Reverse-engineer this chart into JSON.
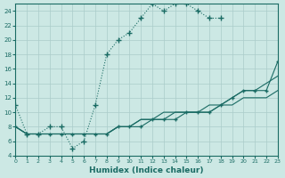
{
  "xlabel": "Humidex (Indice chaleur)",
  "bg_color": "#cce8e4",
  "grid_color": "#aaccca",
  "line_color": "#1a6b64",
  "xlim": [
    0,
    23
  ],
  "ylim": [
    4,
    25
  ],
  "xticks": [
    0,
    1,
    2,
    3,
    4,
    5,
    6,
    7,
    8,
    9,
    10,
    11,
    12,
    13,
    14,
    15,
    16,
    17,
    18,
    19,
    20,
    21,
    22,
    23
  ],
  "yticks": [
    4,
    6,
    8,
    10,
    12,
    14,
    16,
    18,
    20,
    22,
    24
  ],
  "curve_x": [
    0,
    1,
    2,
    3,
    4,
    5,
    6,
    7,
    8,
    9,
    10,
    11,
    12,
    13,
    14,
    15,
    16,
    17,
    18
  ],
  "curve_y": [
    11,
    7,
    7,
    8,
    8,
    5,
    6,
    11,
    18,
    20,
    21,
    23,
    25,
    24,
    25,
    25,
    24,
    23,
    23
  ],
  "line1_x": [
    0,
    1,
    2,
    3,
    4,
    5,
    6,
    7,
    8,
    9,
    10,
    11,
    12,
    13,
    14,
    15,
    16,
    17,
    18,
    19,
    20,
    21,
    22,
    23
  ],
  "line1_y": [
    8,
    7,
    7,
    7,
    7,
    7,
    7,
    7,
    7,
    8,
    8,
    8,
    9,
    9,
    9,
    10,
    10,
    10,
    11,
    12,
    13,
    13,
    13,
    17
  ],
  "line2_x": [
    0,
    1,
    2,
    3,
    4,
    5,
    6,
    7,
    8,
    9,
    10,
    11,
    12,
    13,
    14,
    15,
    16,
    17,
    18,
    19,
    20,
    21,
    22,
    23
  ],
  "line2_y": [
    8,
    7,
    7,
    7,
    7,
    7,
    7,
    7,
    7,
    8,
    8,
    9,
    9,
    10,
    10,
    10,
    10,
    11,
    11,
    12,
    13,
    13,
    14,
    15
  ],
  "line3_x": [
    0,
    1,
    2,
    3,
    4,
    5,
    6,
    7,
    8,
    9,
    10,
    11,
    12,
    13,
    14,
    15,
    16,
    17,
    18,
    19,
    20,
    21,
    22,
    23
  ],
  "line3_y": [
    8,
    7,
    7,
    7,
    7,
    7,
    7,
    7,
    7,
    8,
    8,
    9,
    9,
    9,
    10,
    10,
    10,
    10,
    11,
    11,
    12,
    12,
    12,
    13
  ]
}
